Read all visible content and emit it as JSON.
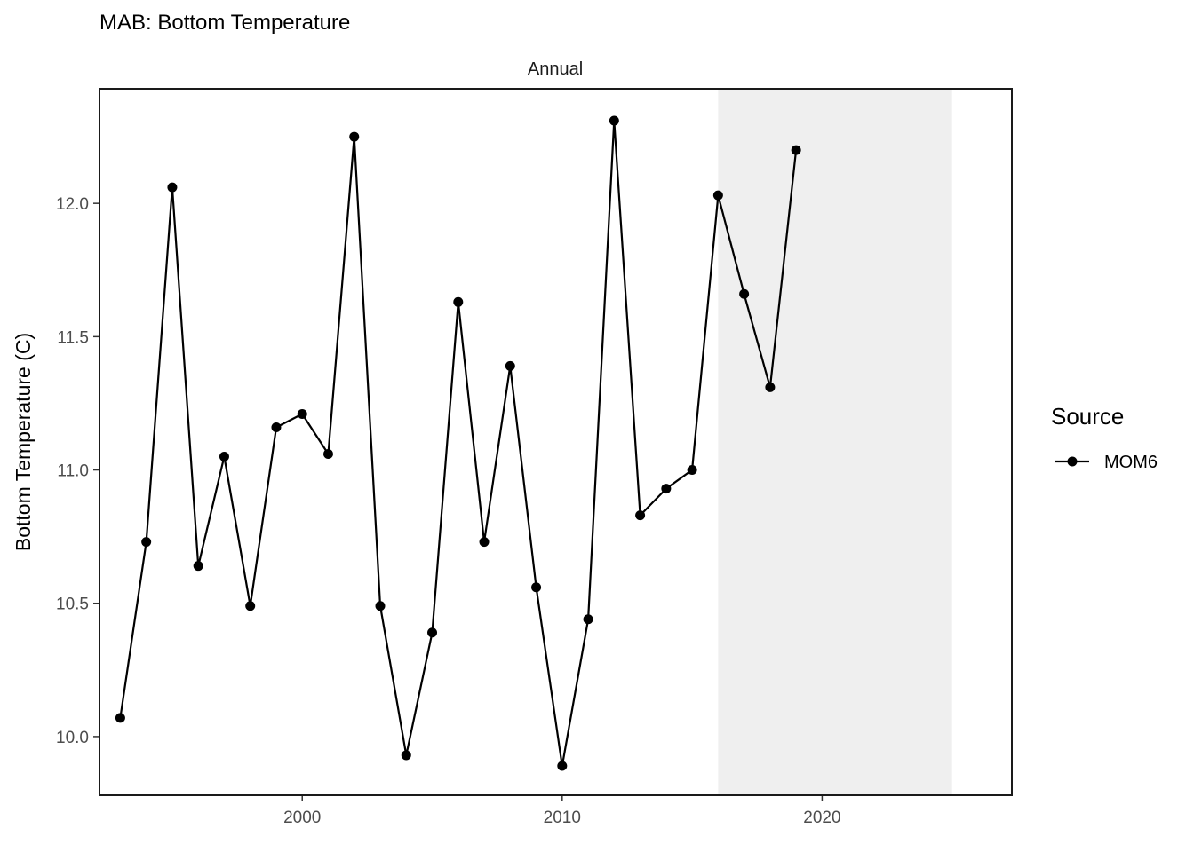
{
  "chart_data": {
    "type": "line",
    "title": "MAB: Bottom Temperature",
    "facet_label": "Annual",
    "xlabel": "",
    "ylabel": "Bottom Temperature (C)",
    "xlim": [
      1992.2,
      2027.3
    ],
    "ylim": [
      9.78,
      12.43
    ],
    "x_ticks": [
      2000,
      2010,
      2020
    ],
    "y_ticks": [
      10.0,
      10.5,
      11.0,
      11.5,
      12.0
    ],
    "y_tick_labels": [
      "10.0",
      "10.5",
      "11.0",
      "11.5",
      "12.0"
    ],
    "shaded_region": {
      "x": [
        2016,
        2025
      ],
      "color": "#efefef"
    },
    "grid": false,
    "legend": {
      "title": "Source",
      "position": "right"
    },
    "series": [
      {
        "name": "MOM6",
        "color": "#000000",
        "x": [
          1993,
          1994,
          1995,
          1996,
          1997,
          1998,
          1999,
          2000,
          2001,
          2002,
          2003,
          2004,
          2005,
          2006,
          2007,
          2008,
          2009,
          2010,
          2011,
          2012,
          2013,
          2014,
          2015,
          2016,
          2017,
          2018,
          2019
        ],
        "y": [
          10.07,
          10.73,
          12.06,
          10.64,
          11.05,
          10.49,
          11.16,
          11.21,
          11.06,
          12.25,
          10.49,
          9.93,
          10.39,
          11.63,
          10.73,
          11.39,
          10.56,
          9.89,
          10.44,
          12.31,
          10.83,
          10.93,
          11.0,
          12.03,
          11.66,
          11.31,
          12.2
        ]
      }
    ]
  }
}
